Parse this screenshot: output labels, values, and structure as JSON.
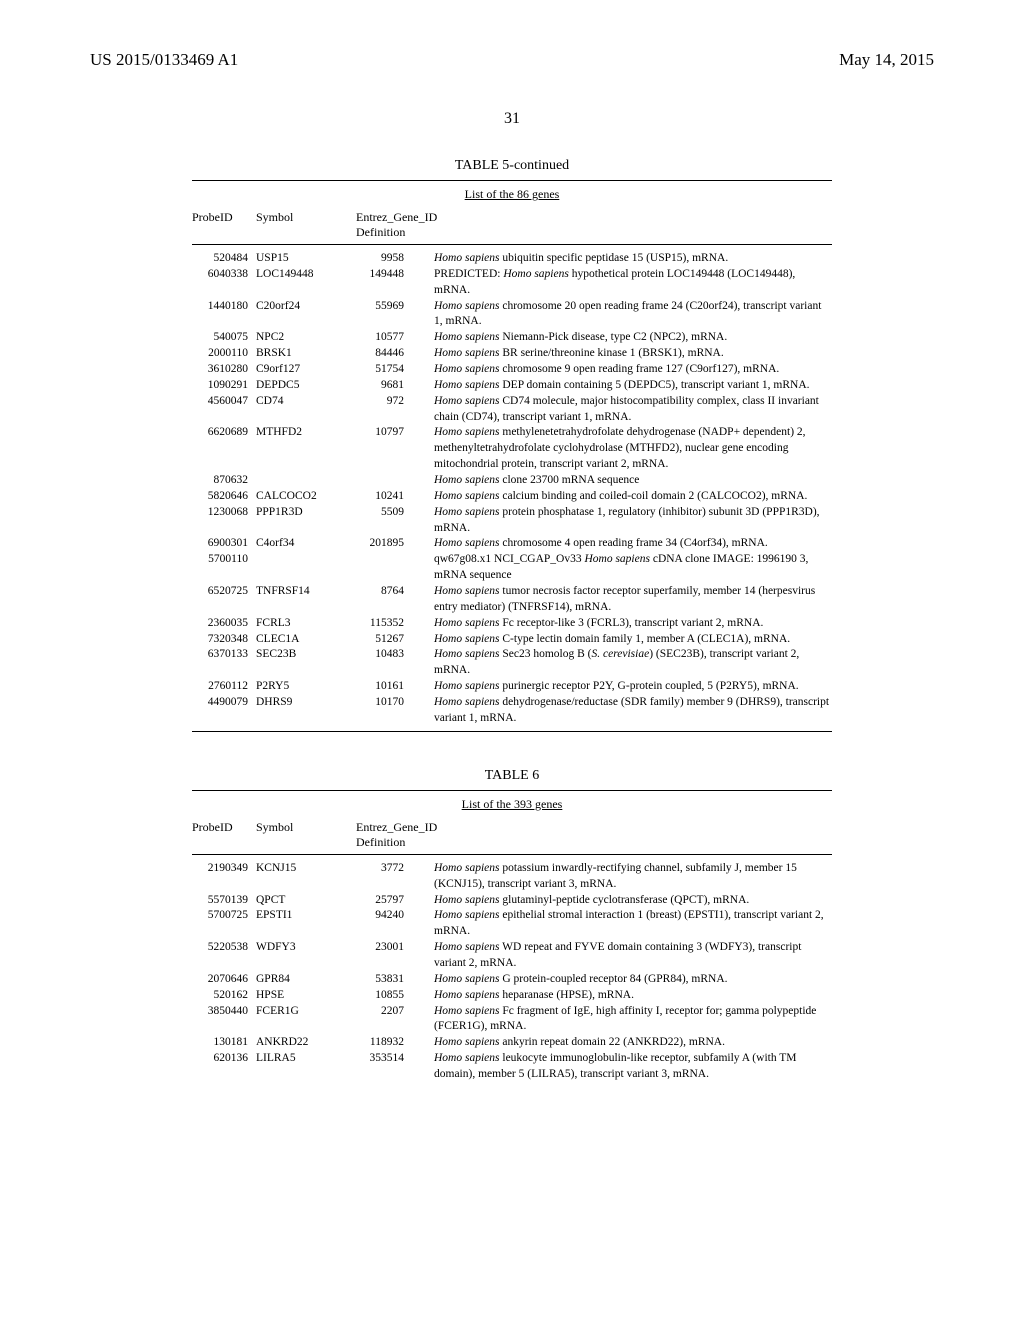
{
  "header": {
    "pub_no": "US 2015/0133469 A1",
    "pub_date": "May 14, 2015"
  },
  "page_number": "31",
  "table5": {
    "caption": "TABLE 5-continued",
    "subtitle": "List of the 86 genes",
    "cols": {
      "probe": "ProbeID",
      "symbol": "Symbol",
      "entrez": "Entrez_Gene_ID Definition"
    },
    "rows": [
      {
        "probe": "520484",
        "symbol": "USP15",
        "entrez": "9958",
        "def_i": "Homo sapiens",
        "def": " ubiquitin specific peptidase 15 (USP15), mRNA."
      },
      {
        "probe": "6040338",
        "symbol": "LOC149448",
        "entrez": "149448",
        "def_i": "",
        "def": "PREDICTED: ",
        "def_i2": "Homo sapiens",
        "def2": " hypothetical protein LOC149448 (LOC149448), mRNA."
      },
      {
        "probe": "1440180",
        "symbol": "C20orf24",
        "entrez": "55969",
        "def_i": "Homo sapiens",
        "def": " chromosome 20 open reading frame 24 (C20orf24), transcript variant 1, mRNA."
      },
      {
        "probe": "540075",
        "symbol": "NPC2",
        "entrez": "10577",
        "def_i": "Homo sapiens",
        "def": " Niemann-Pick disease, type C2 (NPC2), mRNA."
      },
      {
        "probe": "2000110",
        "symbol": "BRSK1",
        "entrez": "84446",
        "def_i": "Homo sapiens",
        "def": " BR serine/threonine kinase 1 (BRSK1), mRNA."
      },
      {
        "probe": "3610280",
        "symbol": "C9orf127",
        "entrez": "51754",
        "def_i": "Homo sapiens",
        "def": " chromosome 9 open reading frame 127 (C9orf127), mRNA."
      },
      {
        "probe": "1090291",
        "symbol": "DEPDC5",
        "entrez": "9681",
        "def_i": "Homo sapiens",
        "def": " DEP domain containing 5 (DEPDC5), transcript variant 1, mRNA."
      },
      {
        "probe": "4560047",
        "symbol": "CD74",
        "entrez": "972",
        "def_i": "Homo sapiens",
        "def": " CD74 molecule, major histocompatibility complex, class II invariant chain (CD74), transcript variant 1, mRNA."
      },
      {
        "probe": "6620689",
        "symbol": "MTHFD2",
        "entrez": "10797",
        "def_i": "Homo sapiens",
        "def": " methylenetetrahydrofolate dehydrogenase (NADP+ dependent) 2, methenyltetrahydrofolate cyclohydrolase (MTHFD2), nuclear gene encoding mitochondrial protein, transcript variant 2, mRNA."
      },
      {
        "probe": "870632",
        "symbol": "",
        "entrez": "",
        "def_i": "Homo sapiens",
        "def": " clone 23700 mRNA sequence"
      },
      {
        "probe": "5820646",
        "symbol": "CALCOCO2",
        "entrez": "10241",
        "def_i": "Homo sapiens",
        "def": " calcium binding and coiled-coil domain 2 (CALCOCO2), mRNA."
      },
      {
        "probe": "1230068",
        "symbol": "PPP1R3D",
        "entrez": "5509",
        "def_i": "Homo sapiens",
        "def": " protein phosphatase 1, regulatory (inhibitor) subunit 3D (PPP1R3D), mRNA."
      },
      {
        "probe": "6900301",
        "symbol": "C4orf34",
        "entrez": "201895",
        "def_i": "Homo sapiens",
        "def": " chromosome 4 open reading frame 34 (C4orf34), mRNA."
      },
      {
        "probe": "5700110",
        "symbol": "",
        "entrez": "",
        "def_i": "",
        "def": "qw67g08.x1 NCI_CGAP_Ov33 ",
        "def_i2": "Homo sapiens",
        "def2": " cDNA clone IMAGE: 1996190 3, mRNA sequence"
      },
      {
        "probe": "6520725",
        "symbol": "TNFRSF14",
        "entrez": "8764",
        "def_i": "Homo sapiens",
        "def": " tumor necrosis factor receptor superfamily, member 14 (herpesvirus entry mediator) (TNFRSF14), mRNA."
      },
      {
        "probe": "2360035",
        "symbol": "FCRL3",
        "entrez": "115352",
        "def_i": "Homo sapiens",
        "def": " Fc receptor-like 3 (FCRL3), transcript variant 2, mRNA."
      },
      {
        "probe": "7320348",
        "symbol": "CLEC1A",
        "entrez": "51267",
        "def_i": "Homo sapiens",
        "def": " C-type lectin domain family 1, member A (CLEC1A), mRNA."
      },
      {
        "probe": "6370133",
        "symbol": "SEC23B",
        "entrez": "10483",
        "def_i": "Homo sapiens",
        "def": " Sec23 homolog B (",
        "def_i2": "S. cerevisiae",
        "def2": ") (SEC23B), transcript variant 2, mRNA."
      },
      {
        "probe": "2760112",
        "symbol": "P2RY5",
        "entrez": "10161",
        "def_i": "Homo sapiens",
        "def": " purinergic receptor P2Y, G-protein coupled, 5 (P2RY5), mRNA."
      },
      {
        "probe": "4490079",
        "symbol": "DHRS9",
        "entrez": "10170",
        "def_i": "Homo sapiens",
        "def": " dehydrogenase/reductase (SDR family) member 9 (DHRS9), transcript variant 1, mRNA."
      }
    ]
  },
  "table6": {
    "caption": "TABLE 6",
    "subtitle": "List of the 393 genes",
    "cols": {
      "probe": "ProbeID",
      "symbol": "Symbol",
      "entrez": "Entrez_Gene_ID Definition"
    },
    "rows": [
      {
        "probe": "2190349",
        "symbol": "KCNJ15",
        "entrez": "3772",
        "def_i": "Homo sapiens",
        "def": " potassium inwardly-rectifying channel, subfamily J, member 15 (KCNJ15), transcript variant 3, mRNA."
      },
      {
        "probe": "5570139",
        "symbol": "QPCT",
        "entrez": "25797",
        "def_i": "Homo sapiens",
        "def": " glutaminyl-peptide cyclotransferase (QPCT), mRNA."
      },
      {
        "probe": "5700725",
        "symbol": "EPSTI1",
        "entrez": "94240",
        "def_i": "Homo sapiens",
        "def": " epithelial stromal interaction 1 (breast) (EPSTI1), transcript variant 2, mRNA."
      },
      {
        "probe": "5220538",
        "symbol": "WDFY3",
        "entrez": "23001",
        "def_i": "Homo sapiens",
        "def": " WD repeat and FYVE domain containing 3 (WDFY3), transcript variant 2, mRNA."
      },
      {
        "probe": "2070646",
        "symbol": "GPR84",
        "entrez": "53831",
        "def_i": "Homo sapiens",
        "def": " G protein-coupled receptor 84 (GPR84), mRNA."
      },
      {
        "probe": "520162",
        "symbol": "HPSE",
        "entrez": "10855",
        "def_i": "Homo sapiens",
        "def": " heparanase (HPSE), mRNA."
      },
      {
        "probe": "3850440",
        "symbol": "FCER1G",
        "entrez": "2207",
        "def_i": "Homo sapiens",
        "def": " Fc fragment of IgE, high affinity I, receptor for; gamma polypeptide (FCER1G), mRNA."
      },
      {
        "probe": "130181",
        "symbol": "ANKRD22",
        "entrez": "118932",
        "def_i": "Homo sapiens",
        "def": " ankyrin repeat domain 22 (ANKRD22), mRNA."
      },
      {
        "probe": "620136",
        "symbol": "LILRA5",
        "entrez": "353514",
        "def_i": "Homo sapiens",
        "def": " leukocyte immunoglobulin-like receptor, subfamily A (with TM domain), member 5 (LILRA5), transcript variant 3, mRNA."
      }
    ]
  }
}
